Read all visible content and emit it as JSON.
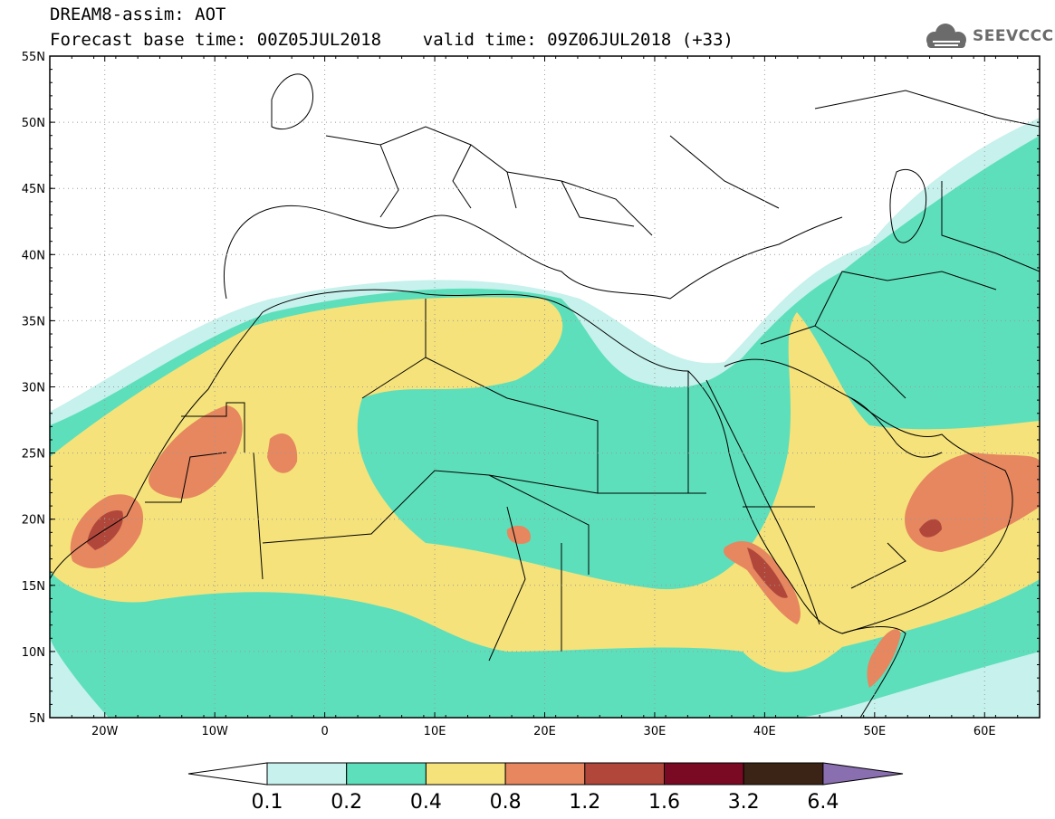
{
  "title": {
    "line1": "DREAM8-assim: AOT",
    "line2": "Forecast base time: 00Z05JUL2018    valid time: 09Z06JUL2018 (+33)"
  },
  "logo": {
    "text": "SEEVCCC",
    "icon": "cloud-icon"
  },
  "map": {
    "lat_labels": [
      "55N",
      "50N",
      "45N",
      "40N",
      "35N",
      "30N",
      "25N",
      "20N",
      "15N",
      "10N",
      "5N"
    ],
    "lon_labels": [
      "20W",
      "10W",
      "0",
      "10E",
      "20E",
      "30E",
      "40E",
      "50E",
      "60E"
    ],
    "lat_range": [
      5,
      55
    ],
    "lon_range": [
      -25,
      65
    ],
    "grid": "dotted"
  },
  "colorbar": {
    "labels": [
      "0.1",
      "0.2",
      "0.4",
      "0.8",
      "1.2",
      "1.6",
      "3.2",
      "6.4"
    ],
    "colors": [
      "#ffffff",
      "#c6f1ec",
      "#5ddfbb",
      "#f5e27a",
      "#e6875f",
      "#b1473b",
      "#7a0a24",
      "#3b2316",
      "#8a6fb0"
    ]
  }
}
